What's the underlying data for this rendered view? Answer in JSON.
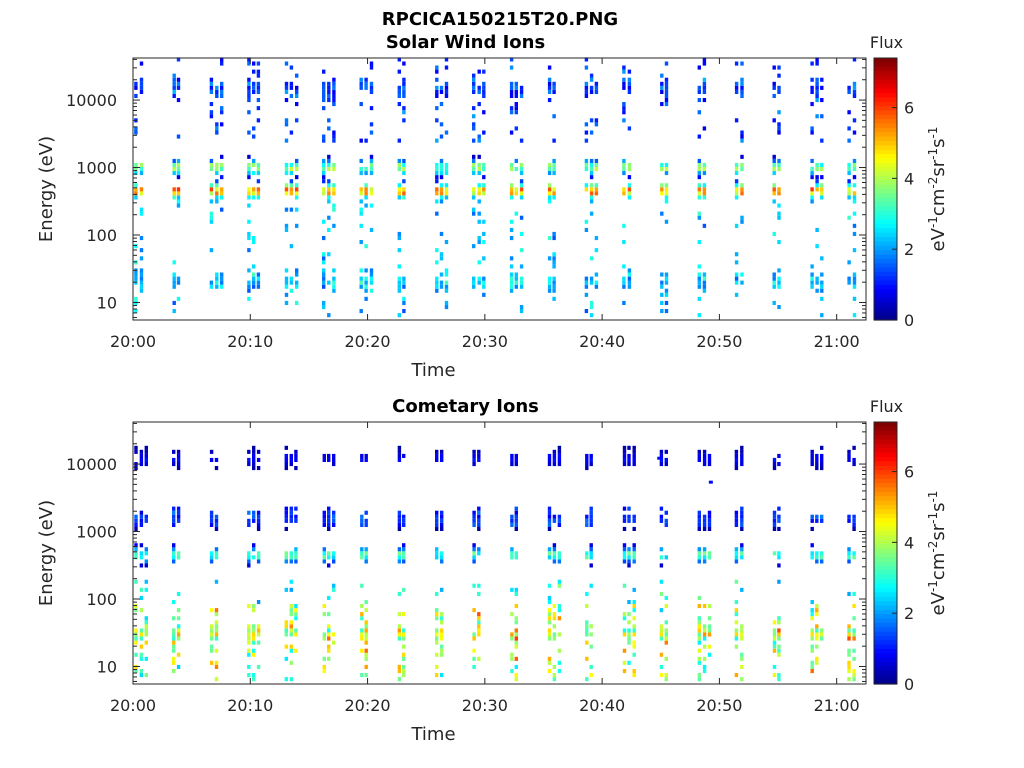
{
  "figure": {
    "suptitle": "RPCICA150215T20.PNG"
  },
  "chart_data": [
    {
      "type": "heatmap",
      "title": "Solar Wind Ions",
      "xlabel": "Time",
      "ylabel": "Energy (eV)",
      "x_ticks": [
        "20:00",
        "20:10",
        "20:20",
        "20:30",
        "20:40",
        "20:50",
        "21:00"
      ],
      "x_range_minutes": [
        0,
        62.5
      ],
      "y_scale": "log",
      "y_ticks": [
        "10",
        "100",
        "1000",
        "10000"
      ],
      "y_range_eV": [
        5.5,
        42000
      ],
      "colorbar": {
        "title": "Flux",
        "label": "eV-1cm-2sr-1s-1",
        "ticks": [
          "0",
          "2",
          "4",
          "6"
        ],
        "range": [
          0,
          7.4
        ],
        "colormap": "jet"
      },
      "pattern": "vertical sweep columns about every 3.2 minutes; peak flux 5.5–6.3 near 450 eV, secondary about 4 near 1000 eV, sparse low flux (1–3) at 2000–40000 eV and 10–300 eV",
      "dominant_band": [
        {
          "energy_eV": 450,
          "flux": 5.8
        },
        {
          "energy_eV": 1000,
          "flux": 4.0
        },
        {
          "energy_eV": 15000,
          "flux": 1.0
        },
        {
          "energy_eV": 20,
          "flux": 2.4
        }
      ]
    },
    {
      "type": "heatmap",
      "title": "Cometary Ions",
      "xlabel": "Time",
      "ylabel": "Energy (eV)",
      "x_ticks": [
        "20:00",
        "20:10",
        "20:20",
        "20:30",
        "20:40",
        "20:50",
        "21:00"
      ],
      "x_range_minutes": [
        0,
        62.5
      ],
      "y_scale": "log",
      "y_ticks": [
        "10",
        "100",
        "1000",
        "10000"
      ],
      "y_range_eV": [
        5.5,
        42000
      ],
      "colorbar": {
        "title": "Flux",
        "label": "eV-1cm-2sr-1s-1",
        "ticks": [
          "0",
          "2",
          "4",
          "6"
        ],
        "range": [
          0,
          7.4
        ],
        "colormap": "jet"
      },
      "pattern": "same sweep columns; moderate flux (about 3.5) near 450 eV, weak near 1500 eV, elevated (4–6) at 7–80 eV with a few isolated points up to 12000 eV",
      "dominant_band": [
        {
          "energy_eV": 450,
          "flux": 3.5
        },
        {
          "energy_eV": 1500,
          "flux": 1.3
        },
        {
          "energy_eV": 30,
          "flux": 4.5
        },
        {
          "energy_eV": 12000,
          "flux": 1.0
        }
      ]
    }
  ]
}
